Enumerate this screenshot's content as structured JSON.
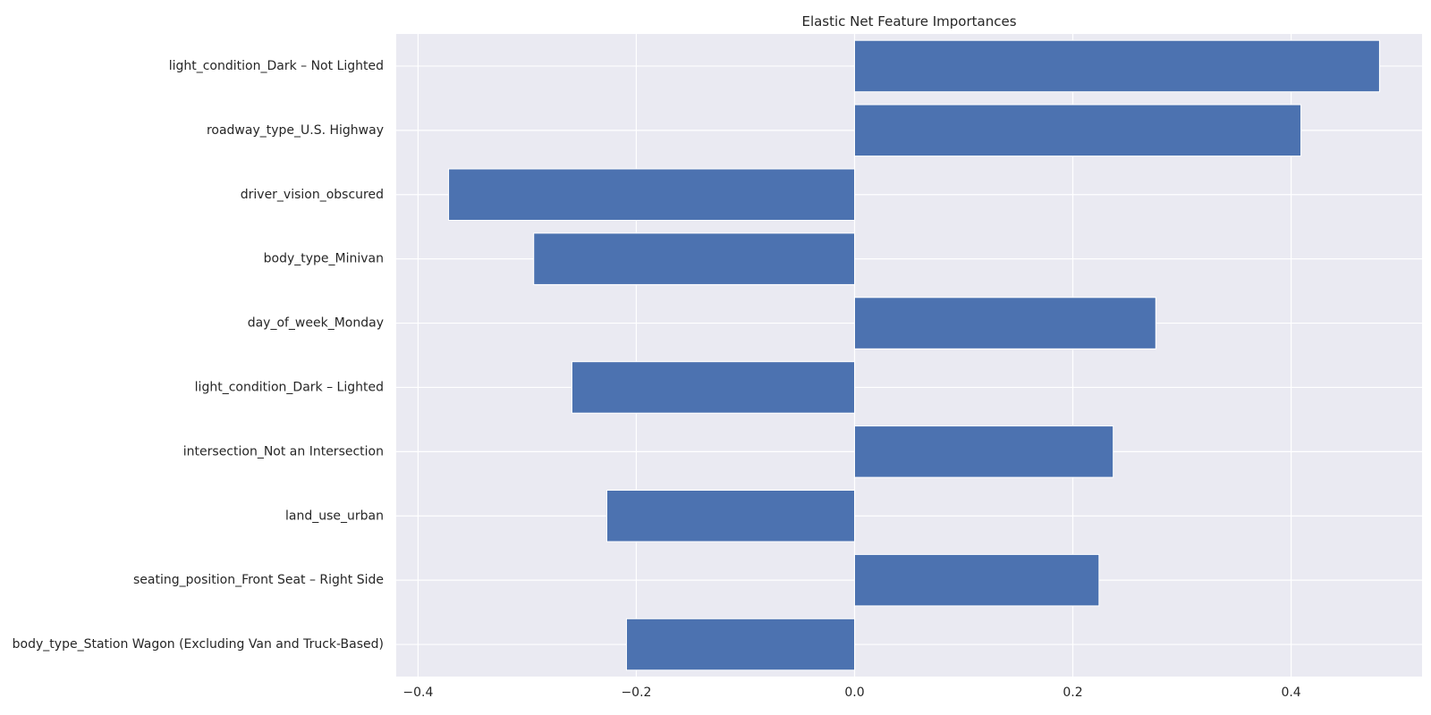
{
  "chart_data": {
    "type": "bar",
    "orientation": "horizontal",
    "title": "Elastic Net Feature Importances",
    "xlabel": "",
    "ylabel": "",
    "xlim": [
      -0.42,
      0.52
    ],
    "xticks": [
      -0.4,
      -0.2,
      0.0,
      0.2,
      0.4
    ],
    "xtick_labels": [
      "−0.4",
      "−0.2",
      "0.0",
      "0.2",
      "0.4"
    ],
    "grid": true,
    "categories": [
      "light_condition_Dark – Not Lighted",
      "roadway_type_U.S. Highway",
      "driver_vision_obscured",
      "body_type_Minivan",
      "day_of_week_Monday",
      "light_condition_Dark – Lighted",
      "intersection_Not an Intersection",
      "land_use_urban",
      "seating_position_Front Seat – Right Side",
      "body_type_Station Wagon (Excluding Van and Truck-Based)"
    ],
    "values": [
      0.481,
      0.409,
      -0.372,
      -0.294,
      0.276,
      -0.259,
      0.237,
      -0.227,
      0.224,
      -0.209
    ],
    "colors": {
      "bar": "#4c72b0",
      "plot_background": "#eaeaf2",
      "grid": "#ffffff",
      "text": "#262626"
    }
  }
}
